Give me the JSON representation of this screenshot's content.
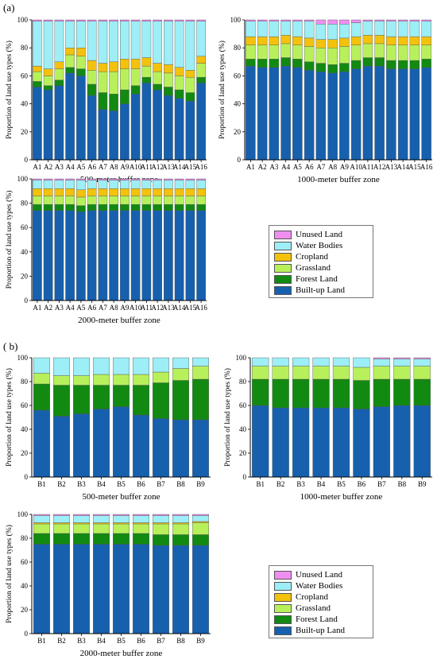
{
  "labels": {
    "part_a": "(a)",
    "part_b": "( b)"
  },
  "legend": [
    {
      "name": "Unused Land",
      "color": "#f08ef0"
    },
    {
      "name": "Water Bodies",
      "color": "#9deef6"
    },
    {
      "name": "Cropland",
      "color": "#f3c20c"
    },
    {
      "name": "Grassland",
      "color": "#b8f05c"
    },
    {
      "name": "Forest Land",
      "color": "#128a12"
    },
    {
      "name": "Built-up Land",
      "color": "#1760ad"
    }
  ],
  "chart_data": [
    {
      "type": "bar",
      "stacked": true,
      "xlabel": "500-meter buffer zone",
      "ylabel": "Proportion of land use types (%)",
      "ylim": [
        0,
        100
      ],
      "categories": [
        "A1",
        "A2",
        "A3",
        "A4",
        "A5",
        "A6",
        "A7",
        "A8",
        "A9",
        "A10",
        "A11",
        "A12",
        "A13",
        "A14",
        "A15",
        "A16"
      ],
      "series": [
        {
          "name": "Built-up Land",
          "values": [
            52,
            50,
            53,
            62,
            60,
            46,
            36,
            35,
            40,
            47,
            55,
            50,
            46,
            44,
            42,
            55
          ]
        },
        {
          "name": "Forest Land",
          "values": [
            4,
            3,
            4,
            4,
            5,
            8,
            12,
            12,
            10,
            6,
            4,
            4,
            6,
            6,
            6,
            4
          ]
        },
        {
          "name": "Grassland",
          "values": [
            7,
            7,
            8,
            9,
            9,
            10,
            15,
            16,
            15,
            12,
            8,
            9,
            10,
            10,
            11,
            10
          ]
        },
        {
          "name": "Cropland",
          "values": [
            4,
            5,
            5,
            5,
            6,
            7,
            6,
            7,
            7,
            7,
            6,
            6,
            6,
            6,
            5,
            5
          ]
        },
        {
          "name": "Water Bodies",
          "values": [
            32,
            34,
            29,
            19,
            19,
            28,
            30,
            29,
            27,
            27,
            26,
            30,
            31,
            33,
            35,
            25
          ]
        },
        {
          "name": "Unused Land",
          "values": [
            1,
            1,
            1,
            1,
            1,
            1,
            1,
            1,
            1,
            1,
            1,
            1,
            1,
            1,
            1,
            1
          ]
        }
      ]
    },
    {
      "type": "bar",
      "stacked": true,
      "xlabel": "1000-meter buffer zone",
      "ylabel": "Proportion of land use types (%)",
      "ylim": [
        0,
        100
      ],
      "categories": [
        "A1",
        "A2",
        "A3",
        "A4",
        "A5",
        "A6",
        "A7",
        "A8",
        "A9",
        "A10",
        "A11",
        "A12",
        "A13",
        "A14",
        "A15",
        "A16"
      ],
      "series": [
        {
          "name": "Built-up Land",
          "values": [
            67,
            66,
            66,
            67,
            66,
            64,
            63,
            62,
            63,
            65,
            67,
            67,
            65,
            65,
            65,
            66
          ]
        },
        {
          "name": "Forest Land",
          "values": [
            5,
            6,
            6,
            6,
            6,
            6,
            6,
            6,
            6,
            6,
            6,
            6,
            6,
            6,
            6,
            6
          ]
        },
        {
          "name": "Grassland",
          "values": [
            10,
            10,
            10,
            10,
            10,
            11,
            11,
            12,
            12,
            11,
            10,
            10,
            11,
            11,
            11,
            10
          ]
        },
        {
          "name": "Cropland",
          "values": [
            6,
            6,
            6,
            6,
            6,
            6,
            6,
            6,
            6,
            6,
            6,
            6,
            6,
            6,
            6,
            6
          ]
        },
        {
          "name": "Water Bodies",
          "values": [
            11,
            11,
            11,
            10,
            11,
            12,
            11,
            11,
            10,
            10,
            10,
            10,
            11,
            11,
            11,
            11
          ]
        },
        {
          "name": "Unused Land",
          "values": [
            1,
            1,
            1,
            1,
            1,
            1,
            3,
            3,
            3,
            2,
            1,
            1,
            1,
            1,
            1,
            1
          ]
        }
      ]
    },
    {
      "type": "bar",
      "stacked": true,
      "xlabel": "2000-meter buffer zone",
      "ylabel": "Proportion of land use types (%)",
      "ylim": [
        0,
        100
      ],
      "categories": [
        "A1",
        "A2",
        "A3",
        "A4",
        "A5",
        "A6",
        "A7",
        "A8",
        "A9",
        "A10",
        "A11",
        "A12",
        "A13",
        "A14",
        "A15",
        "A16"
      ],
      "series": [
        {
          "name": "Built-up Land",
          "values": [
            74,
            74,
            74,
            74,
            73,
            74,
            74,
            74,
            74,
            74,
            74,
            74,
            74,
            74,
            74,
            74
          ]
        },
        {
          "name": "Forest Land",
          "values": [
            5,
            5,
            5,
            5,
            5,
            5,
            5,
            5,
            5,
            5,
            5,
            5,
            5,
            5,
            5,
            5
          ]
        },
        {
          "name": "Grassland",
          "values": [
            7,
            7,
            7,
            7,
            7,
            7,
            7,
            7,
            7,
            7,
            7,
            7,
            7,
            7,
            7,
            7
          ]
        },
        {
          "name": "Cropland",
          "values": [
            6,
            6,
            6,
            6,
            6,
            6,
            6,
            6,
            6,
            6,
            6,
            6,
            6,
            6,
            6,
            6
          ]
        },
        {
          "name": "Water Bodies",
          "values": [
            7,
            7,
            7,
            7,
            8,
            7,
            7,
            7,
            7,
            7,
            7,
            7,
            7,
            7,
            7,
            7
          ]
        },
        {
          "name": "Unused Land",
          "values": [
            1,
            1,
            1,
            1,
            1,
            1,
            1,
            1,
            1,
            1,
            1,
            1,
            1,
            1,
            1,
            1
          ]
        }
      ]
    },
    {
      "type": "bar",
      "stacked": true,
      "xlabel": "500-meter buffer zone",
      "ylabel": "Proportion of land use types (%)",
      "ylim": [
        0,
        100
      ],
      "categories": [
        "B1",
        "B2",
        "B3",
        "B4",
        "B5",
        "B6",
        "B7",
        "B8",
        "B9"
      ],
      "series": [
        {
          "name": "Built-up Land",
          "values": [
            56,
            51,
            53,
            57,
            59,
            52,
            49,
            48,
            48
          ]
        },
        {
          "name": "Forest Land",
          "values": [
            22,
            26,
            24,
            20,
            18,
            25,
            30,
            33,
            34
          ]
        },
        {
          "name": "Grassland",
          "values": [
            9,
            8,
            8,
            9,
            9,
            9,
            9,
            10,
            11
          ]
        },
        {
          "name": "Cropland",
          "values": [
            0,
            0,
            0,
            0,
            0,
            0,
            0,
            0,
            0
          ]
        },
        {
          "name": "Water Bodies",
          "values": [
            13,
            15,
            15,
            14,
            14,
            14,
            12,
            9,
            7
          ]
        },
        {
          "name": "Unused Land",
          "values": [
            0,
            0,
            0,
            0,
            0,
            0,
            0,
            0,
            0
          ]
        }
      ]
    },
    {
      "type": "bar",
      "stacked": true,
      "xlabel": "1000-meter buffer zone",
      "ylabel": "Proportion of land use types (%)",
      "ylim": [
        0,
        100
      ],
      "categories": [
        "B1",
        "B2",
        "B3",
        "B4",
        "B5",
        "B6",
        "B7",
        "B8",
        "B9"
      ],
      "series": [
        {
          "name": "Built-up Land",
          "values": [
            60,
            58,
            58,
            58,
            58,
            57,
            59,
            60,
            60
          ]
        },
        {
          "name": "Forest Land",
          "values": [
            22,
            24,
            24,
            24,
            24,
            24,
            23,
            22,
            22
          ]
        },
        {
          "name": "Grassland",
          "values": [
            11,
            11,
            11,
            11,
            11,
            11,
            11,
            11,
            11
          ]
        },
        {
          "name": "Cropland",
          "values": [
            0,
            0,
            0,
            0,
            0,
            0,
            0,
            0,
            0
          ]
        },
        {
          "name": "Water Bodies",
          "values": [
            7,
            7,
            7,
            7,
            7,
            8,
            6,
            6,
            6
          ]
        },
        {
          "name": "Unused Land",
          "values": [
            0,
            0,
            0,
            0,
            0,
            0,
            1,
            1,
            1
          ]
        }
      ]
    },
    {
      "type": "bar",
      "stacked": true,
      "xlabel": "2000-meter buffer zone",
      "ylabel": "Proportion of land use types (%)",
      "ylim": [
        0,
        100
      ],
      "categories": [
        "B1",
        "B2",
        "B3",
        "B4",
        "B5",
        "B6",
        "B7",
        "B8",
        "B9"
      ],
      "series": [
        {
          "name": "Built-up Land",
          "values": [
            75,
            75,
            75,
            75,
            75,
            75,
            74,
            74,
            74
          ]
        },
        {
          "name": "Forest Land",
          "values": [
            9,
            9,
            9,
            9,
            9,
            9,
            9,
            9,
            9
          ]
        },
        {
          "name": "Grassland",
          "values": [
            8,
            8,
            8,
            8,
            8,
            8,
            9,
            9,
            10
          ]
        },
        {
          "name": "Cropland",
          "values": [
            1,
            1,
            1,
            1,
            1,
            1,
            1,
            1,
            1
          ]
        },
        {
          "name": "Water Bodies",
          "values": [
            6,
            6,
            6,
            6,
            6,
            6,
            6,
            6,
            5
          ]
        },
        {
          "name": "Unused Land",
          "values": [
            1,
            1,
            1,
            1,
            1,
            1,
            1,
            1,
            1
          ]
        }
      ]
    }
  ]
}
